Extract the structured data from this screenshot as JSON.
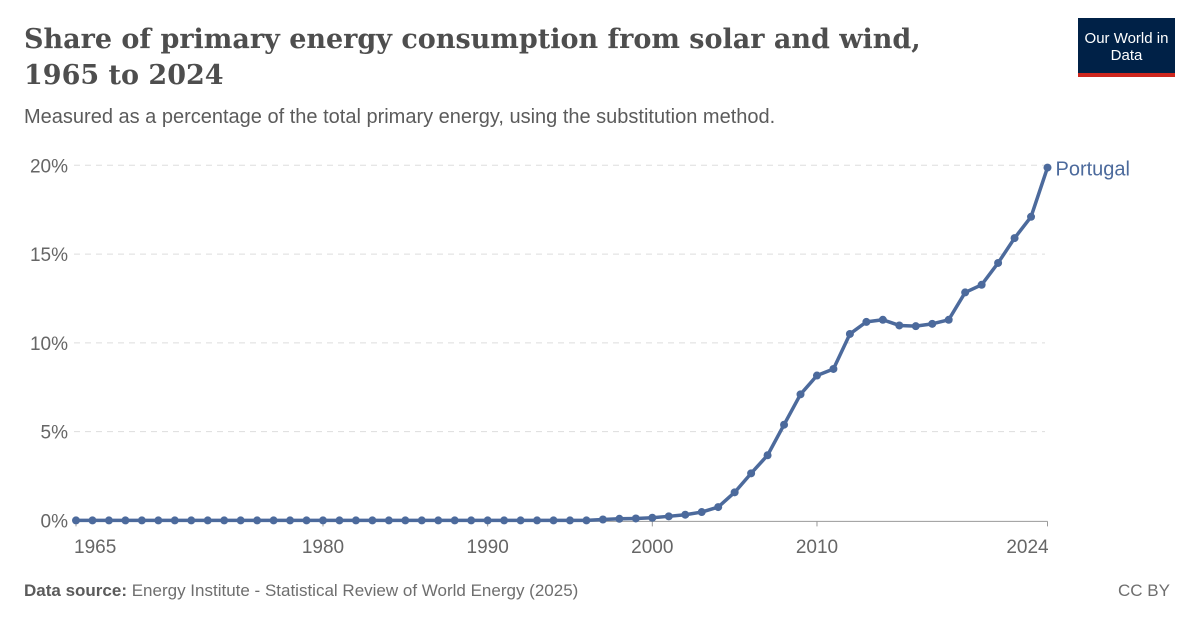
{
  "header": {
    "title": "Share of primary energy consumption from solar and wind, 1965 to 2024",
    "subtitle": "Measured as a percentage of the total primary energy, using the substitution method.",
    "logo": "Our World in Data"
  },
  "footer": {
    "source_label": "Data source:",
    "source_text": "Energy Institute - Statistical Review of World Energy (2025)",
    "license": "CC BY"
  },
  "colors": {
    "series": "#4c6a9c",
    "logo_bg": "#002147",
    "logo_accent": "#ce261e"
  },
  "chart_data": {
    "type": "line",
    "title": "Share of primary energy consumption from solar and wind, 1965 to 2024",
    "xlim": [
      1965,
      2024
    ],
    "ylim": [
      0,
      20
    ],
    "x_ticks": [
      "1965",
      "1980",
      "1990",
      "2000",
      "2010",
      "2024"
    ],
    "y_ticks": [
      "0%",
      "5%",
      "10%",
      "15%",
      "20%"
    ],
    "grid": "horizontal dashed",
    "legend": "inline label at line end",
    "series": [
      {
        "name": "Portugal",
        "x": [
          1965,
          1966,
          1967,
          1968,
          1969,
          1970,
          1971,
          1972,
          1973,
          1974,
          1975,
          1976,
          1977,
          1978,
          1979,
          1980,
          1981,
          1982,
          1983,
          1984,
          1985,
          1986,
          1987,
          1988,
          1989,
          1990,
          1991,
          1992,
          1993,
          1994,
          1995,
          1996,
          1997,
          1998,
          1999,
          2000,
          2001,
          2002,
          2003,
          2004,
          2005,
          2006,
          2007,
          2008,
          2009,
          2010,
          2011,
          2012,
          2013,
          2014,
          2015,
          2016,
          2017,
          2018,
          2019,
          2020,
          2021,
          2022,
          2023,
          2024
        ],
        "y": [
          0,
          0,
          0,
          0,
          0,
          0,
          0,
          0,
          0,
          0,
          0,
          0,
          0,
          0,
          0,
          0,
          0,
          0,
          0,
          0,
          0,
          0,
          0,
          0,
          0,
          0,
          0,
          0,
          0,
          0,
          0,
          0,
          0.05,
          0.09,
          0.11,
          0.15,
          0.23,
          0.32,
          0.47,
          0.75,
          1.58,
          2.65,
          3.67,
          5.39,
          7.1,
          8.16,
          8.53,
          10.5,
          11.18,
          11.3,
          10.98,
          10.94,
          11.07,
          11.3,
          12.84,
          13.27,
          14.5,
          15.9,
          17.1,
          19.87
        ]
      }
    ]
  }
}
